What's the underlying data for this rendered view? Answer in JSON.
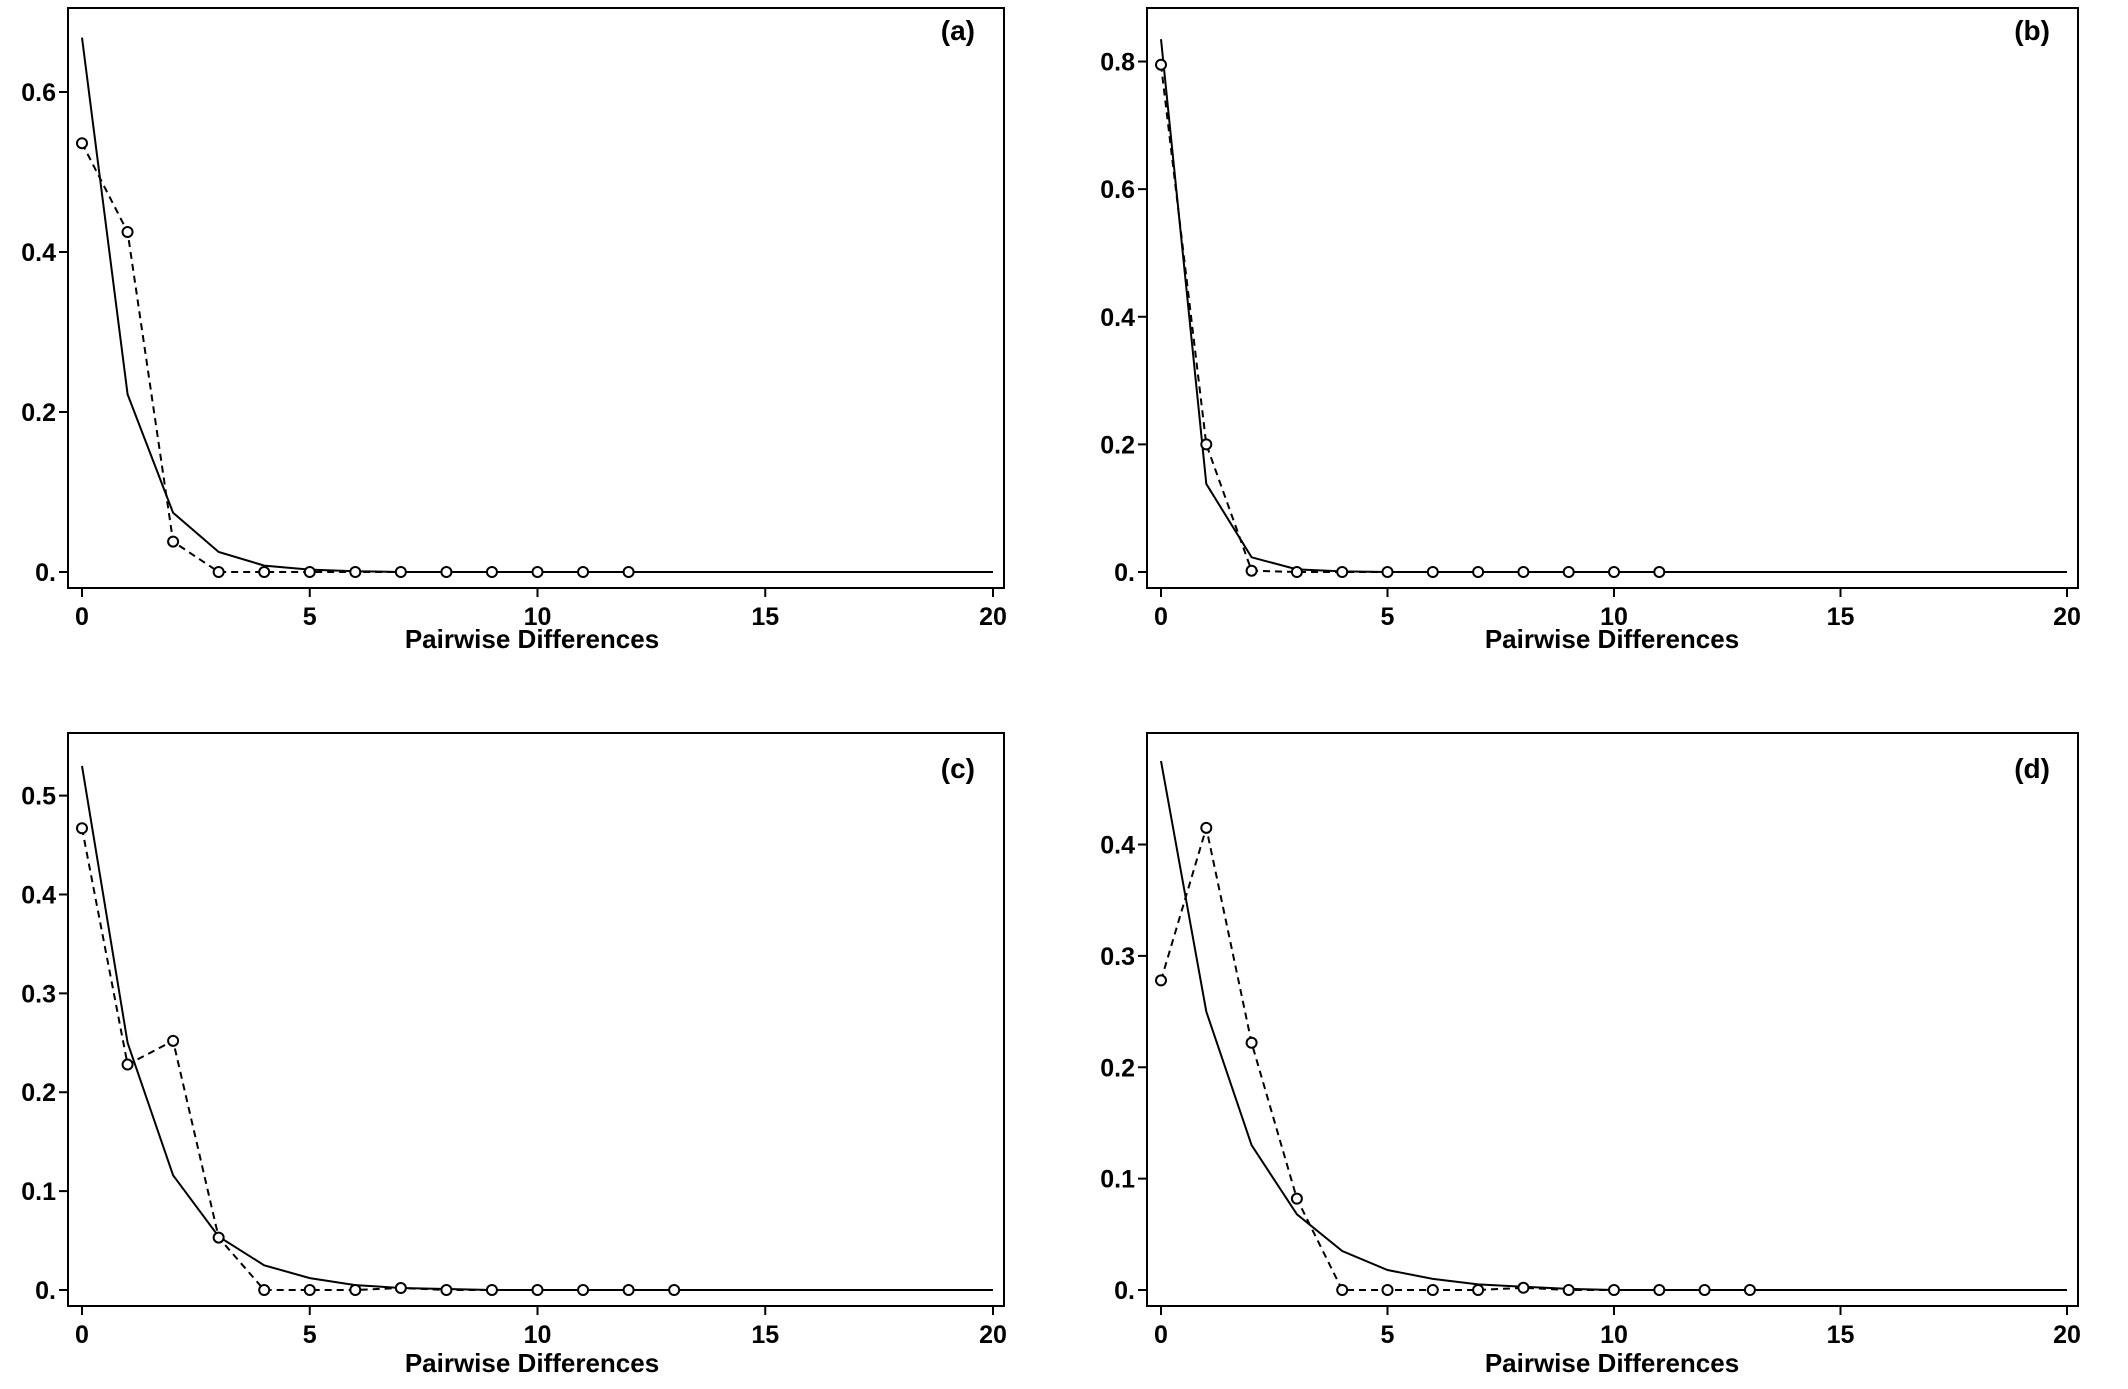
{
  "figure": {
    "panels": [
      "a",
      "b",
      "c",
      "d"
    ]
  },
  "chart_data": [
    {
      "type": "line",
      "panel_label": "(a)",
      "xlabel": "Pairwise Differences",
      "ylabel": "",
      "xlim": [
        0,
        20
      ],
      "ylim": [
        0,
        0.67
      ],
      "x_ticks": [
        0,
        5,
        10,
        15,
        20
      ],
      "y_ticks": [
        0,
        0.2,
        0.4,
        0.6
      ],
      "y_tick_labels": [
        "0.",
        "0.2",
        "0.4",
        "0.6"
      ],
      "series": [
        {
          "style": "solid",
          "x": [
            0,
            1,
            2,
            3,
            4,
            5,
            6,
            7,
            8,
            9,
            10,
            11,
            12,
            13,
            14,
            15,
            16,
            17,
            18,
            19,
            20
          ],
          "y": [
            0.668,
            0.222,
            0.074,
            0.025,
            0.008,
            0.003,
            0.001,
            0,
            0,
            0,
            0,
            0,
            0,
            0,
            0,
            0,
            0,
            0,
            0,
            0,
            0
          ]
        },
        {
          "style": "dashed",
          "markers": "circle",
          "x": [
            0,
            1,
            2,
            3,
            4,
            5,
            6,
            7,
            8,
            9,
            10,
            11,
            12
          ],
          "y": [
            0.536,
            0.425,
            0.038,
            0,
            0,
            0,
            0,
            0,
            0,
            0,
            0,
            0,
            0
          ]
        }
      ]
    },
    {
      "type": "line",
      "panel_label": "(b)",
      "xlabel": "Pairwise Differences",
      "ylabel": "",
      "xlim": [
        0,
        20
      ],
      "ylim": [
        0,
        0.84
      ],
      "x_ticks": [
        0,
        5,
        10,
        15,
        20
      ],
      "y_ticks": [
        0,
        0.2,
        0.4,
        0.6,
        0.8
      ],
      "y_tick_labels": [
        "0.",
        "0.2",
        "0.4",
        "0.6",
        "0.8"
      ],
      "series": [
        {
          "style": "solid",
          "x": [
            0,
            1,
            2,
            3,
            4,
            5,
            6,
            7,
            8,
            9,
            10,
            11,
            12,
            13,
            14,
            15,
            16,
            17,
            18,
            19,
            20
          ],
          "y": [
            0.835,
            0.138,
            0.023,
            0.004,
            0.001,
            0,
            0,
            0,
            0,
            0,
            0,
            0,
            0,
            0,
            0,
            0,
            0,
            0,
            0,
            0,
            0
          ]
        },
        {
          "style": "dashed",
          "markers": "circle",
          "x": [
            0,
            1,
            2,
            3,
            4,
            5,
            6,
            7,
            8,
            9,
            10,
            11
          ],
          "y": [
            0.795,
            0.2,
            0.002,
            0,
            0,
            0,
            0,
            0,
            0,
            0,
            0,
            0
          ]
        }
      ]
    },
    {
      "type": "line",
      "panel_label": "(c)",
      "xlabel": "Pairwise Differences",
      "ylabel": "",
      "xlim": [
        0,
        20
      ],
      "ylim": [
        0,
        0.535
      ],
      "x_ticks": [
        0,
        5,
        10,
        15,
        20
      ],
      "y_ticks": [
        0,
        0.1,
        0.2,
        0.3,
        0.4,
        0.5
      ],
      "y_tick_labels": [
        "0.",
        "0.1",
        "0.2",
        "0.3",
        "0.4",
        "0.5"
      ],
      "series": [
        {
          "style": "solid",
          "x": [
            0,
            1,
            2,
            3,
            4,
            5,
            6,
            7,
            8,
            9,
            10,
            11,
            12,
            13,
            14,
            15,
            16,
            17,
            18,
            19,
            20
          ],
          "y": [
            0.53,
            0.25,
            0.116,
            0.054,
            0.025,
            0.012,
            0.005,
            0.002,
            0.001,
            0,
            0,
            0,
            0,
            0,
            0,
            0,
            0,
            0,
            0,
            0,
            0
          ]
        },
        {
          "style": "dashed",
          "markers": "circle",
          "x": [
            0,
            1,
            2,
            3,
            4,
            5,
            6,
            7,
            8,
            9,
            10,
            11,
            12,
            13
          ],
          "y": [
            0.467,
            0.228,
            0.252,
            0.053,
            0,
            0,
            0,
            0.002,
            0,
            0,
            0,
            0,
            0,
            0
          ]
        }
      ]
    },
    {
      "type": "line",
      "panel_label": "(d)",
      "xlabel": "Pairwise Differences",
      "ylabel": "",
      "xlim": [
        0,
        20
      ],
      "ylim": [
        0,
        0.475
      ],
      "x_ticks": [
        0,
        5,
        10,
        15,
        20
      ],
      "y_ticks": [
        0,
        0.1,
        0.2,
        0.3,
        0.4
      ],
      "y_tick_labels": [
        "0.",
        "0.1",
        "0.2",
        "0.3",
        "0.4"
      ],
      "series": [
        {
          "style": "solid",
          "x": [
            0,
            1,
            2,
            3,
            4,
            5,
            6,
            7,
            8,
            9,
            10,
            11,
            12,
            13,
            14,
            15,
            16,
            17,
            18,
            19,
            20
          ],
          "y": [
            0.475,
            0.25,
            0.13,
            0.068,
            0.035,
            0.018,
            0.01,
            0.005,
            0.003,
            0.001,
            0,
            0,
            0,
            0,
            0,
            0,
            0,
            0,
            0,
            0,
            0
          ]
        },
        {
          "style": "dashed",
          "markers": "circle",
          "x": [
            0,
            1,
            2,
            3,
            4,
            5,
            6,
            7,
            8,
            9,
            10,
            11,
            12,
            13
          ],
          "y": [
            0.278,
            0.415,
            0.222,
            0.082,
            0,
            0,
            0,
            0,
            0.002,
            0,
            0,
            0,
            0,
            0
          ]
        }
      ]
    }
  ]
}
